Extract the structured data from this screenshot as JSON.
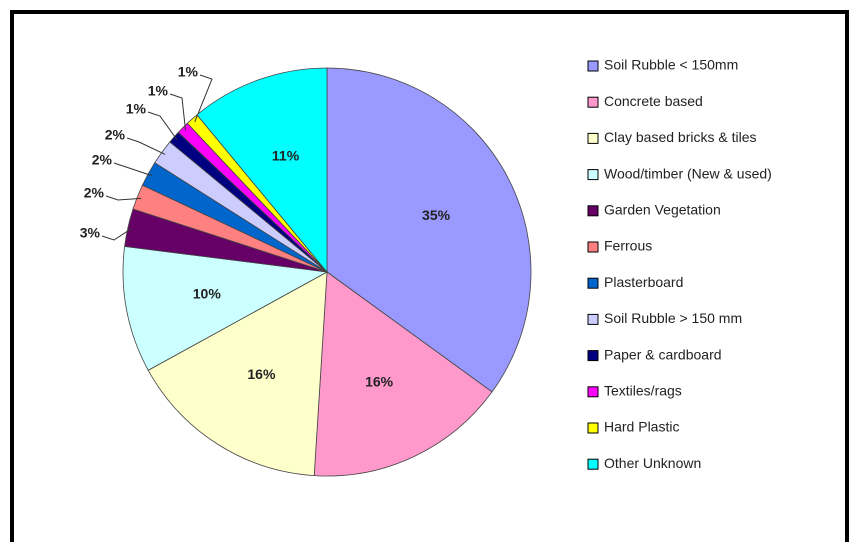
{
  "chart_data": {
    "type": "pie",
    "categories": [
      "Soil Rubble <  150mm",
      "Concrete based",
      "Clay based  bricks & tiles",
      "Wood/timber (New & used)",
      "Garden Vegetation",
      "Ferrous",
      "Plasterboard",
      "Soil Rubble > 150 mm",
      "Paper & cardboard",
      "Textiles/rags",
      "Hard Plastic",
      "Other Unknown"
    ],
    "values": [
      35,
      16,
      16,
      10,
      3,
      2,
      2,
      2,
      1,
      1,
      1,
      11
    ],
    "value_labels": [
      "35%",
      "16%",
      "16%",
      "10%",
      "3%",
      "2%",
      "2%",
      "2%",
      "1%",
      "1%",
      "1%",
      "11%"
    ],
    "colors": [
      "#9999ff",
      "#ff99cc",
      "#ffffcc",
      "#ccffff",
      "#660066",
      "#ff8080",
      "#0066cc",
      "#ccccff",
      "#000080",
      "#ff00ff",
      "#ffff00",
      "#00ffff"
    ],
    "legend": "right"
  }
}
